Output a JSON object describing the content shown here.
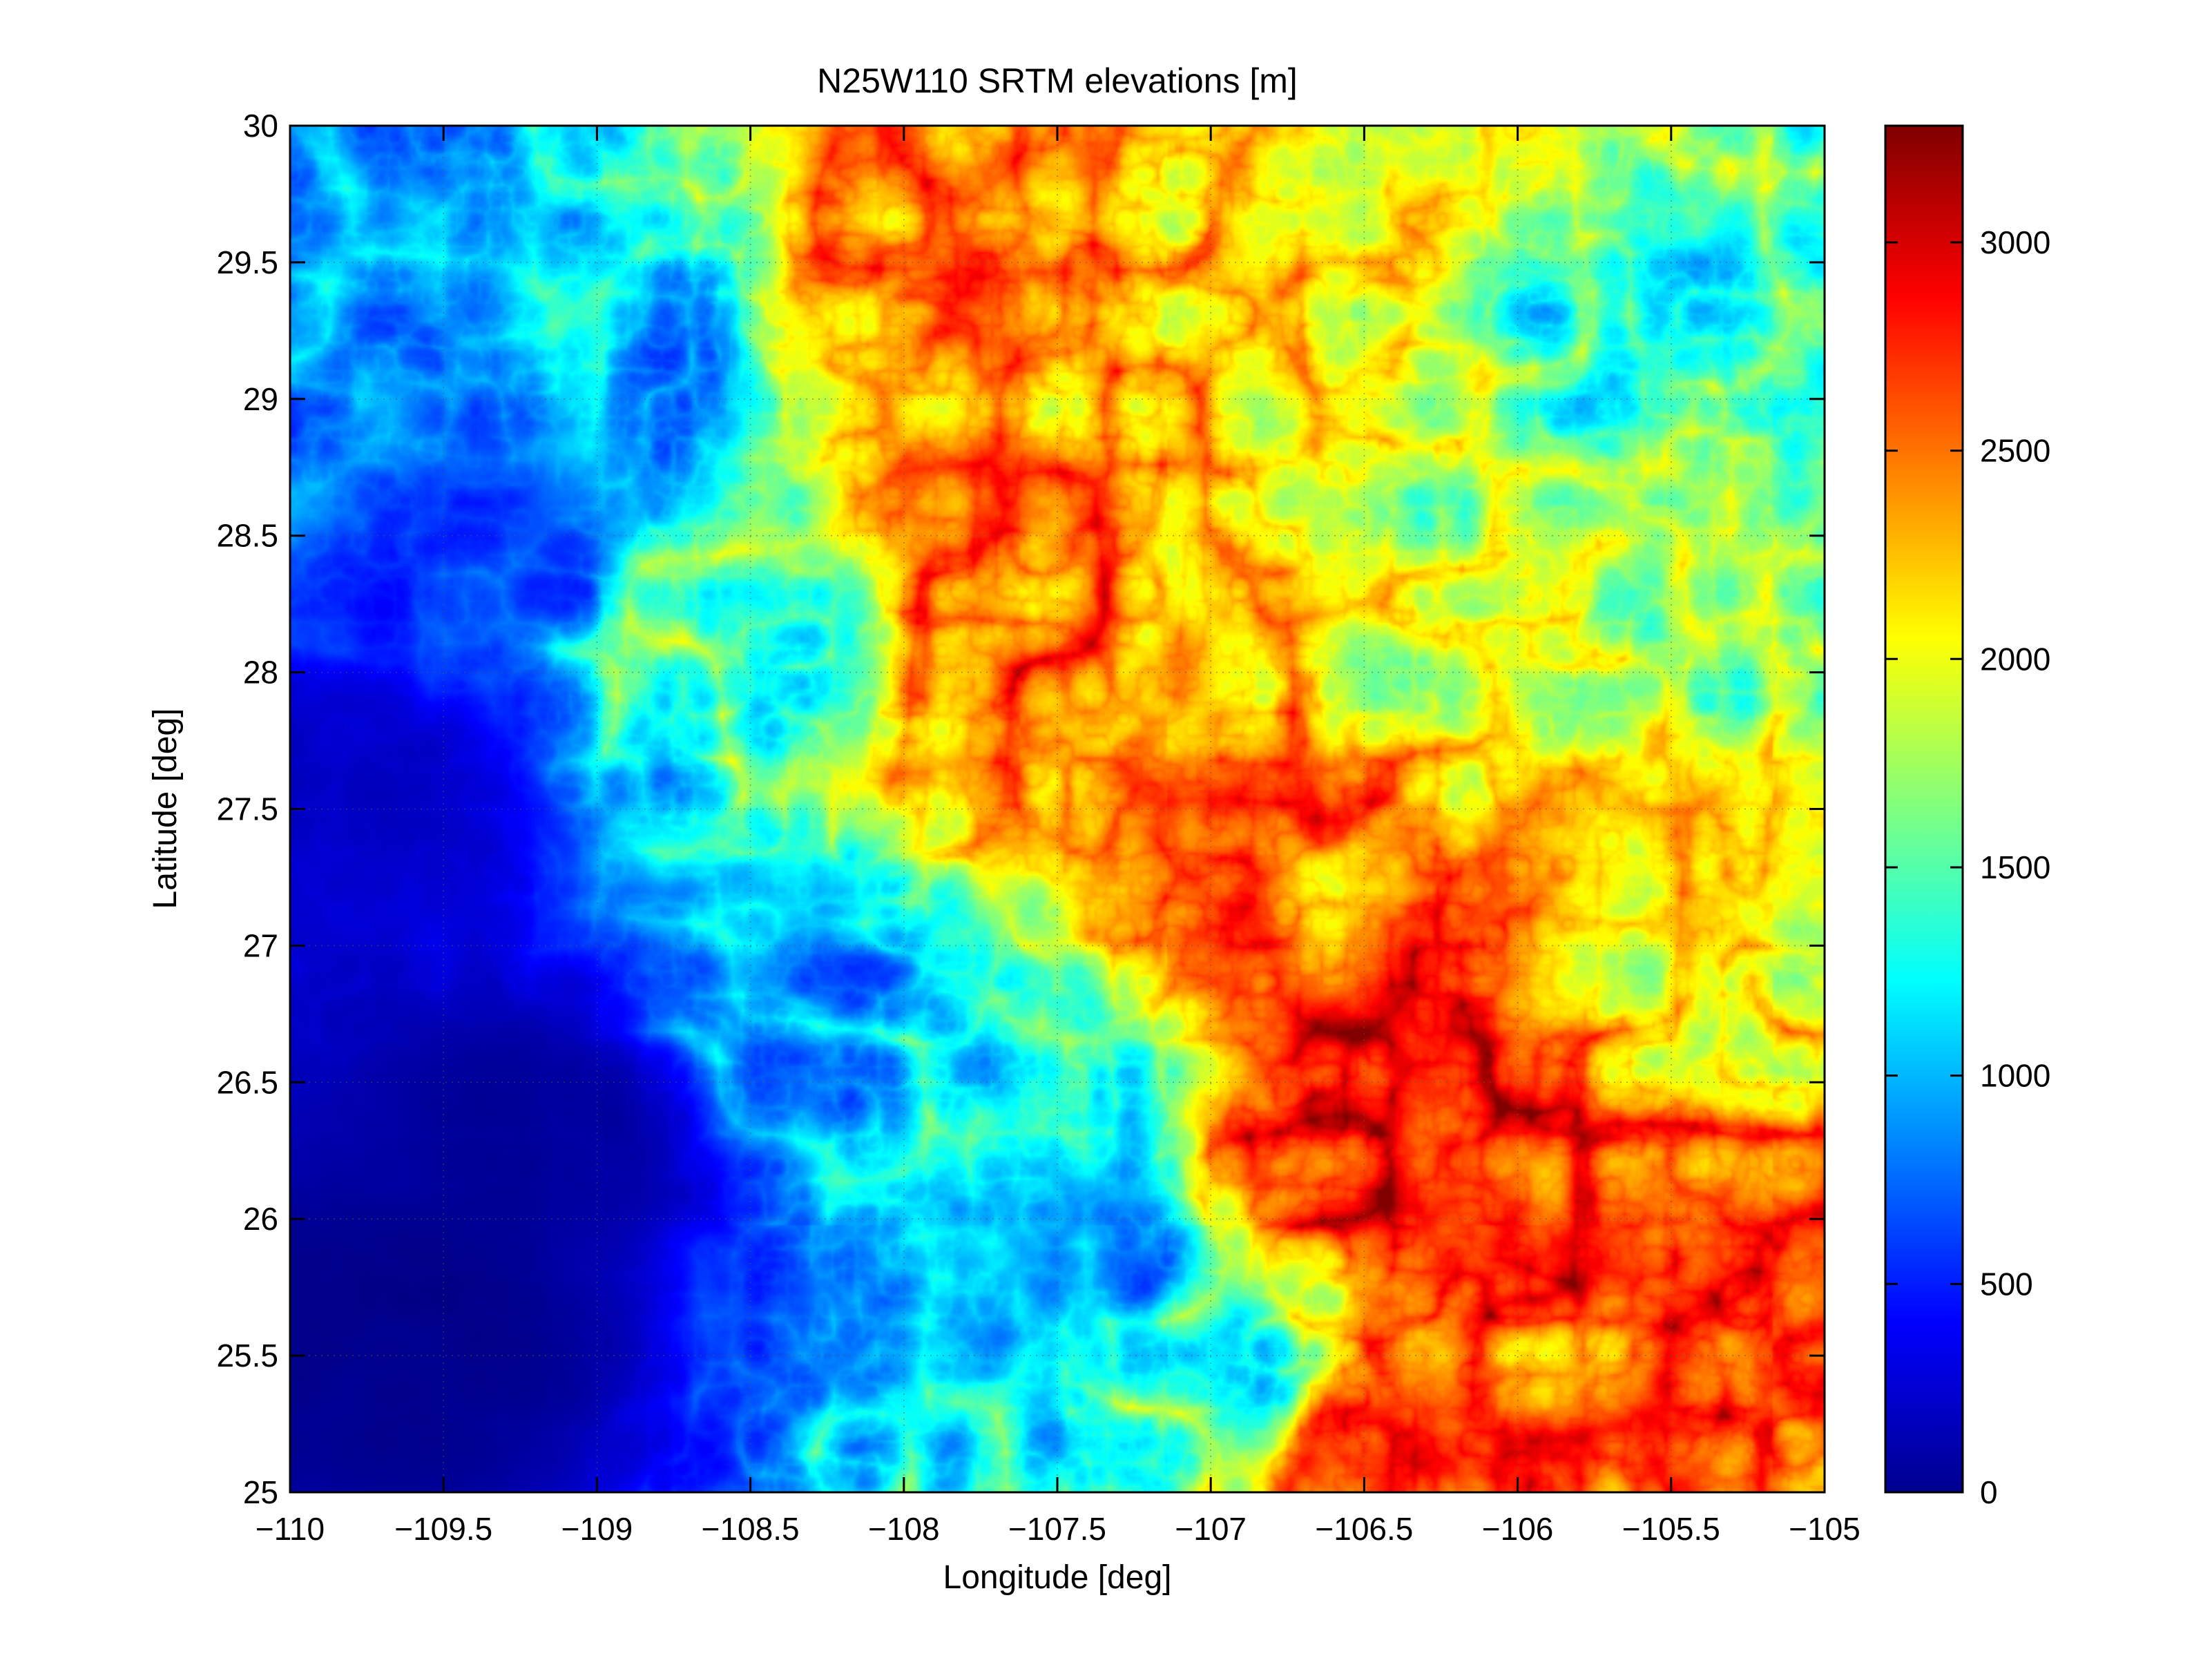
{
  "chart_data": {
    "type": "heatmap",
    "title": "N25W110 SRTM elevations [m]",
    "xlabel": "Longitude [deg]",
    "ylabel": "Latitude [deg]",
    "xlim": [
      -110,
      -105
    ],
    "ylim": [
      25,
      30
    ],
    "x_ticks": [
      -110,
      -109.5,
      -109,
      -108.5,
      -108,
      -107.5,
      -107,
      -106.5,
      -106,
      -105.5,
      -105
    ],
    "x_tick_labels": [
      "−110",
      "−109.5",
      "−109",
      "−108.5",
      "−108",
      "−107.5",
      "−107",
      "−106.5",
      "−106",
      "−105.5",
      "−105"
    ],
    "y_ticks": [
      25,
      25.5,
      26,
      26.5,
      27,
      27.5,
      28,
      28.5,
      29,
      29.5,
      30
    ],
    "y_tick_labels": [
      "25",
      "25.5",
      "26",
      "26.5",
      "27",
      "27.5",
      "28",
      "28.5",
      "29",
      "29.5",
      "30"
    ],
    "grid": true,
    "colormap": "jet",
    "colorbar": {
      "location": "right",
      "range": [
        0,
        3280
      ],
      "ticks": [
        0,
        500,
        1000,
        1500,
        2000,
        2500,
        3000
      ],
      "tick_labels": [
        "0",
        "500",
        "1000",
        "1500",
        "2000",
        "2500",
        "3000"
      ]
    },
    "elevation_field": {
      "description_units": "meters",
      "regions": [
        {
          "lon": -109.6,
          "lat": 25.6,
          "elev": 30
        },
        {
          "lon": -109.2,
          "lat": 26.3,
          "elev": 80
        },
        {
          "lon": -109.7,
          "lat": 27.5,
          "elev": 200
        },
        {
          "lon": -109.8,
          "lat": 29.5,
          "elev": 800
        },
        {
          "lon": -109.3,
          "lat": 28.5,
          "elev": 500
        },
        {
          "lon": -108.9,
          "lat": 29.3,
          "elev": 900
        },
        {
          "lon": -108.6,
          "lat": 28.2,
          "elev": 1300
        },
        {
          "lon": -108.0,
          "lat": 29.5,
          "elev": 2300
        },
        {
          "lon": -107.6,
          "lat": 29.6,
          "elev": 2200
        },
        {
          "lon": -107.0,
          "lat": 29.3,
          "elev": 2100
        },
        {
          "lon": -107.6,
          "lat": 28.2,
          "elev": 2400
        },
        {
          "lon": -107.3,
          "lat": 27.7,
          "elev": 2300
        },
        {
          "lon": -107.8,
          "lat": 26.5,
          "elev": 1000
        },
        {
          "lon": -108.3,
          "lat": 26.8,
          "elev": 800
        },
        {
          "lon": -107.5,
          "lat": 25.9,
          "elev": 700
        },
        {
          "lon": -106.3,
          "lat": 26.1,
          "elev": 2800
        },
        {
          "lon": -106.5,
          "lat": 26.4,
          "elev": 2700
        },
        {
          "lon": -105.9,
          "lat": 26.0,
          "elev": 2600
        },
        {
          "lon": -106.6,
          "lat": 27.3,
          "elev": 2300
        },
        {
          "lon": -106.0,
          "lat": 28.0,
          "elev": 1700
        },
        {
          "lon": -105.6,
          "lat": 29.2,
          "elev": 1200
        },
        {
          "lon": -105.3,
          "lat": 28.3,
          "elev": 1400
        },
        {
          "lon": -105.4,
          "lat": 27.0,
          "elev": 1800
        },
        {
          "lon": -105.3,
          "lat": 25.5,
          "elev": 2500
        },
        {
          "lon": -105.7,
          "lat": 25.3,
          "elev": 2300
        },
        {
          "lon": -106.5,
          "lat": 25.2,
          "elev": 2400
        },
        {
          "lon": -106.9,
          "lat": 25.4,
          "elev": 1200
        },
        {
          "lon": -106.7,
          "lat": 29.8,
          "elev": 1800
        },
        {
          "lon": -106.3,
          "lat": 28.8,
          "elev": 1600
        }
      ]
    }
  }
}
